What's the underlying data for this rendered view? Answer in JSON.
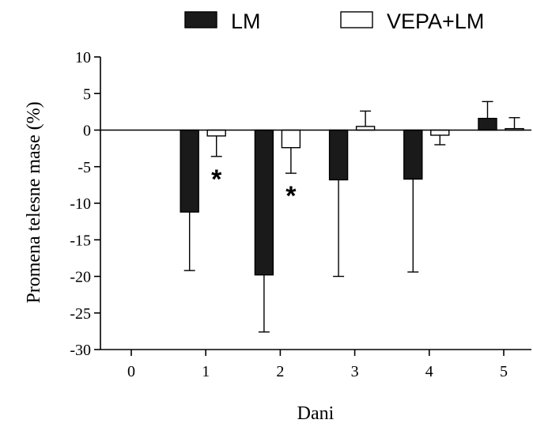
{
  "chart_data": {
    "type": "bar",
    "xlabel": "Dani",
    "ylabel": "Promena telesne mase (%)",
    "ylim": [
      -30,
      10
    ],
    "yticks": [
      10,
      5,
      0,
      -5,
      -10,
      -15,
      -20,
      -25,
      -30
    ],
    "x_ticks": [
      "0",
      "1",
      "2",
      "3",
      "4",
      "5"
    ],
    "categories": [
      "1",
      "2",
      "3",
      "4",
      "5"
    ],
    "legend_position": "top",
    "grid": false,
    "series": [
      {
        "name": "LM",
        "fill": "#1a1a1a",
        "values": [
          -11.2,
          -19.8,
          -6.8,
          -6.7,
          1.6
        ],
        "errors": [
          8.0,
          7.8,
          13.2,
          12.7,
          2.3
        ]
      },
      {
        "name": "VEPA+LM",
        "fill": "#ffffff",
        "values": [
          -0.8,
          -2.4,
          0.5,
          -0.7,
          0.2
        ],
        "errors": [
          2.8,
          3.5,
          2.1,
          1.3,
          1.5
        ]
      }
    ],
    "annotations": [
      {
        "category": "1",
        "text": "*",
        "series": "VEPA+LM"
      },
      {
        "category": "2",
        "text": "*",
        "series": "VEPA+LM"
      }
    ]
  }
}
